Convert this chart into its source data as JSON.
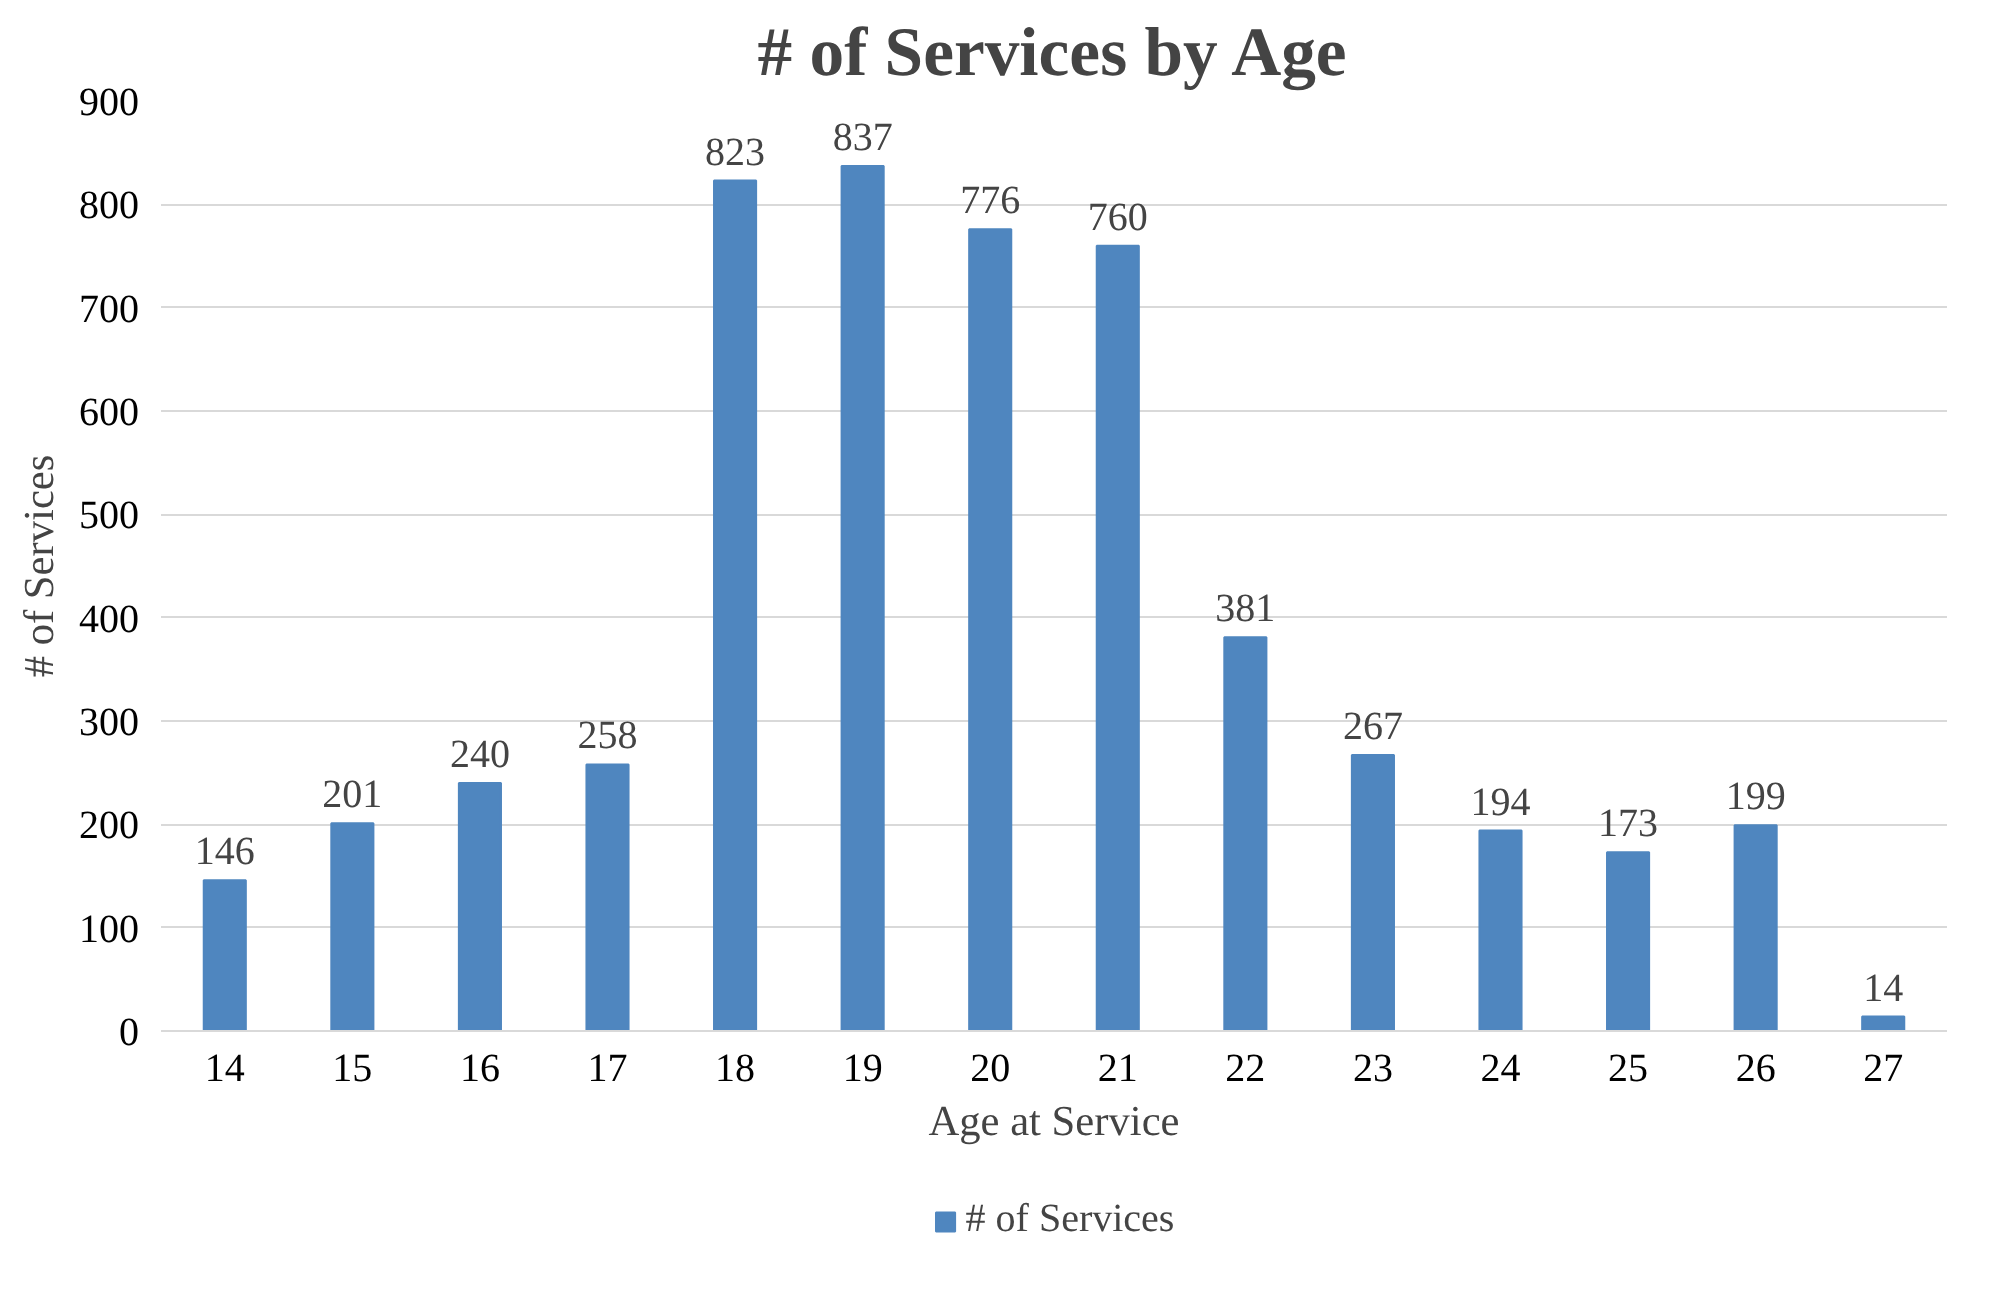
{
  "chart_data": {
    "type": "bar",
    "title": "# of Services by Age",
    "xlabel": "Age at Service",
    "ylabel": "# of Services",
    "categories": [
      "14",
      "15",
      "16",
      "17",
      "18",
      "19",
      "20",
      "21",
      "22",
      "23",
      "24",
      "25",
      "26",
      "27"
    ],
    "series": [
      {
        "name": "# of Services",
        "color": "#4f86bf",
        "values": [
          146,
          201,
          240,
          258,
          823,
          837,
          776,
          760,
          381,
          267,
          194,
          173,
          199,
          14
        ]
      }
    ],
    "ylim": [
      0,
      900
    ],
    "yticks": [
      0,
      100,
      200,
      300,
      400,
      500,
      600,
      700,
      800,
      900
    ],
    "grid": "y",
    "legend": "bottom",
    "data_labels": true
  }
}
